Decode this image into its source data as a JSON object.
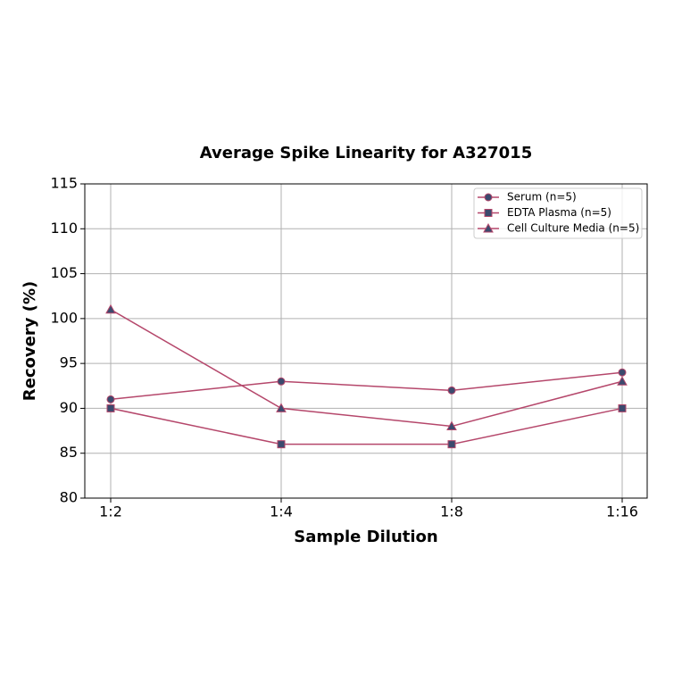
{
  "chart_data": {
    "type": "line",
    "title": "Average Spike Linearity for A327015",
    "x_label": "Sample Dilution",
    "y_label": "Recovery (%)",
    "categories": [
      "1:2",
      "1:4",
      "1:8",
      "1:16"
    ],
    "series": [
      {
        "name": "Serum (n=5)",
        "color": "#b5476b",
        "marker": "circle",
        "marker_color": "#3b4a6e",
        "values": [
          91,
          93,
          92,
          94
        ]
      },
      {
        "name": "EDTA Plasma (n=5)",
        "color": "#b5476b",
        "marker": "square",
        "marker_color": "#3b4a6e",
        "values": [
          90,
          86,
          86,
          90
        ]
      },
      {
        "name": "Cell Culture Media (n=5)",
        "color": "#b5476b",
        "marker": "triangle",
        "marker_color": "#3b4a6e",
        "values": [
          101,
          90,
          88,
          93
        ]
      }
    ],
    "ylim": [
      80,
      115
    ],
    "yticks": [
      80,
      85,
      90,
      95,
      100,
      105,
      110,
      115
    ],
    "grid": true,
    "legend": "upper right"
  }
}
